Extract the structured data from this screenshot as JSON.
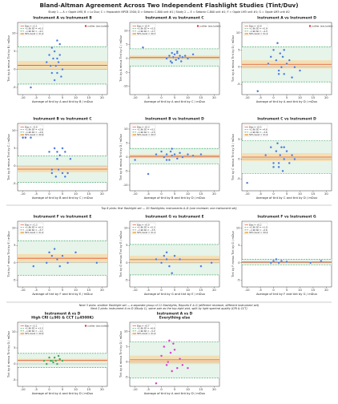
{
  "header": {
    "title": "Bland-Altman Agreement Across Two Independent Flashlight Studies (Tint/Duv)",
    "subtitle": "Study 1 — A = Opple LMS; B = Lx Duv; C = Hopscotch NPCB 1500; D = Sekonic C-800 unit #1  |  Study 2 — E = Sekonic C-800 unit #1; F = Opple LM3 unit #1; G = Opple LM3 unit #2",
    "notes": [
      "Top 6 plots: first flashlight set — 20 flashlights; instruments A–D (one reviewer; one instrument set)",
      "Next 3 plots: another flashlight set — a separate group of 11 flashlights, Reports E & G (different reviewer, different instrument set)",
      "Next 2 plots: instrument A vs D (Study 1), same pair as the top-right plot, split by light spectral quality (CRI & CCT)"
    ]
  },
  "chart_data": [
    {
      "type": "scatter",
      "title": [
        "Instrument A vs Instrument B"
      ],
      "x_label": "Average of tint by A and tint by B / mDuv",
      "y_label": "Tint by A minus Tint by B / mDuv",
      "xlim": [
        -12,
        22
      ],
      "xticks": [
        -10,
        -5,
        0,
        5,
        10,
        15,
        20
      ],
      "ylim": [
        -7,
        13
      ],
      "yticks": [
        -5,
        0,
        5,
        10
      ],
      "color": "#4a78d6",
      "annotation": "outlier (excluded)",
      "bias": {
        "name": "Bias = +1.1",
        "value": 1.1
      },
      "upper": {
        "name": "+1.96 SD = +6.3",
        "value": 6.3
      },
      "lower": {
        "name": "−1.96 SD = −4.1",
        "value": -4.1
      },
      "band": {
        "name": "50% band = ±1.2",
        "halfwidth": 1.2
      },
      "x": [
        -7,
        -1,
        0,
        1,
        1.5,
        2,
        2.5,
        3,
        3,
        3.5,
        4,
        4.5,
        5,
        2,
        0.5,
        1,
        3,
        4
      ],
      "y": [
        -5,
        2,
        4,
        6,
        3,
        5,
        1,
        8,
        -1,
        2,
        4,
        -2,
        0,
        -3,
        1,
        -1,
        3,
        7
      ]
    },
    {
      "type": "scatter",
      "title": [
        "Instrument A vs Instrument C"
      ],
      "x_label": "Average of tint by A and tint by C / mDuv",
      "y_label": "Tint by A minus Tint by C / mDuv",
      "xlim": [
        -12,
        22
      ],
      "xticks": [
        -10,
        -5,
        0,
        5,
        10,
        15,
        20
      ],
      "ylim": [
        -13,
        13
      ],
      "yticks": [
        -10,
        -5,
        0,
        5,
        10
      ],
      "color": "#4a78d6",
      "annotation": "outlier (excluded)",
      "bias": {
        "name": "Bias = +0.4",
        "value": 0.4
      },
      "upper": {
        "name": "+1.96 SD = +3.5",
        "value": 3.5
      },
      "lower": {
        "name": "−1.96 SD = −2.7",
        "value": -2.7
      },
      "band": {
        "name": "50% band = ±0.7",
        "halfwidth": 0.7
      },
      "x": [
        -7,
        2,
        3,
        3.5,
        4,
        4.5,
        5,
        5.5,
        6,
        6.5,
        7,
        7.5,
        8,
        9,
        10,
        12,
        4,
        6
      ],
      "y": [
        4,
        0,
        1,
        -1,
        2,
        0.5,
        1.5,
        -0.5,
        2,
        0,
        1,
        -1,
        0.5,
        1,
        0,
        1.5,
        -1.5,
        2.5
      ]
    },
    {
      "type": "scatter",
      "title": [
        "Instrument A vs Instrument D"
      ],
      "x_label": "Average of tint by A and tint by D / mDuv",
      "y_label": "Tint by A minus Tint by D / mDuv",
      "xlim": [
        -12,
        22
      ],
      "xticks": [
        -10,
        -5,
        0,
        5,
        10,
        15,
        20
      ],
      "ylim": [
        -8,
        13
      ],
      "yticks": [
        -5,
        0,
        5,
        10
      ],
      "color": "#4a78d6",
      "annotation": "outlier (excluded)",
      "bias": {
        "name": "Bias = +0.8",
        "value": 0.8
      },
      "upper": {
        "name": "+1.96 SD = +5.9",
        "value": 5.9
      },
      "lower": {
        "name": "−1.96 SD = −4.3",
        "value": -4.3
      },
      "band": {
        "name": "50% band = ±1.2",
        "halfwidth": 1.2
      },
      "x": [
        -6,
        -2,
        -1,
        0,
        1,
        1.5,
        2,
        2.5,
        3,
        3.5,
        4,
        5,
        6,
        7,
        8,
        10,
        2,
        4
      ],
      "y": [
        -7,
        1,
        3,
        5,
        2,
        7,
        -1,
        4,
        0,
        3,
        -2,
        1,
        2,
        -3,
        0,
        -1,
        -2,
        5
      ]
    },
    {
      "type": "scatter",
      "title": [
        "Instrument B vs Instrument C"
      ],
      "x_label": "Average of tint by B and tint by C / mDuv",
      "y_label": "Tint by B minus Tint by C / mDuv",
      "xlim": [
        -12,
        22
      ],
      "xticks": [
        -10,
        -5,
        0,
        5,
        10,
        15,
        20
      ],
      "ylim": [
        -7,
        12
      ],
      "yticks": [
        -5,
        0,
        5,
        10
      ],
      "color": "#4a78d6",
      "bias": {
        "name": "Bias = −0.9",
        "value": -0.9
      },
      "upper": {
        "name": "+1.96 SD = +2.8",
        "value": 2.8
      },
      "lower": {
        "name": "−1.96 SD = −4.6",
        "value": -4.6
      },
      "band": {
        "name": "50% band = ±0.9",
        "halfwidth": 0.9
      },
      "x": [
        -10,
        -9,
        -7,
        0,
        1,
        2,
        2.5,
        3,
        3.5,
        4,
        5,
        6,
        7,
        8,
        1,
        3,
        5,
        6
      ],
      "y": [
        8,
        8,
        8,
        4,
        -2,
        5,
        -3,
        4,
        -1,
        3,
        -2,
        4,
        -2,
        2,
        -1,
        2,
        5,
        -3
      ]
    },
    {
      "type": "scatter",
      "title": [
        "Instrument B vs Instrument D"
      ],
      "x_label": "Average of tint by B and tint by D / mDuv",
      "y_label": "Tint by B minus Tint by D / mDuv",
      "xlim": [
        -12,
        22
      ],
      "xticks": [
        -10,
        -5,
        0,
        5,
        10,
        15,
        20
      ],
      "ylim": [
        -12,
        12
      ],
      "yticks": [
        -10,
        -5,
        0,
        5,
        10
      ],
      "color": "#4a78d6",
      "bias": {
        "name": "Bias = +0.3",
        "value": 0.3
      },
      "upper": {
        "name": "+1.96 SD = +3.1",
        "value": 3.1
      },
      "lower": {
        "name": "−1.96 SD = −2.5",
        "value": -2.5
      },
      "band": {
        "name": "50% band = ±0.7",
        "halfwidth": 0.7
      },
      "x": [
        -10,
        -5,
        -2,
        0,
        1,
        2,
        3,
        3.5,
        4,
        5,
        6,
        7,
        8,
        10,
        12,
        15,
        4,
        2
      ],
      "y": [
        -1,
        -6,
        1,
        2,
        0,
        1,
        -1,
        2,
        0.5,
        1,
        -0.5,
        1.5,
        0,
        1,
        0.5,
        1,
        3,
        -1
      ]
    },
    {
      "type": "scatter",
      "title": [
        "Instrument C vs Instrument D"
      ],
      "x_label": "Average of tint by C and tint by D / mDuv",
      "y_label": "Tint by C minus Tint by D / mDuv",
      "xlim": [
        -12,
        22
      ],
      "xticks": [
        -10,
        -5,
        0,
        5,
        10,
        15,
        20
      ],
      "ylim": [
        -8,
        9
      ],
      "yticks": [
        -5,
        0,
        5
      ],
      "color": "#4a78d6",
      "bias": {
        "name": "Bias = +0.5",
        "value": 0.5
      },
      "upper": {
        "name": "+1.96 SD = +4.6",
        "value": 4.6
      },
      "lower": {
        "name": "−1.96 SD = −3.6",
        "value": -3.6
      },
      "band": {
        "name": "50% band = ±1.0",
        "halfwidth": 1.0
      },
      "x": [
        -10,
        -3,
        -1,
        0,
        1,
        1.5,
        2,
        2.5,
        3,
        3.5,
        4,
        5,
        6,
        7,
        8,
        2,
        0,
        4
      ],
      "y": [
        -6,
        1,
        3,
        -1,
        2,
        4,
        -2,
        1,
        3,
        -3,
        0,
        2,
        -1,
        1,
        0,
        -1,
        -2,
        3
      ]
    },
    {
      "type": "scatter",
      "title": [
        "Instrument F vs Instrument E"
      ],
      "x_label": "Average of tint by F and tint by E / mDuv",
      "y_label": "Tint by F minus Tint by E / mDuv",
      "xlim": [
        -12,
        22
      ],
      "xticks": [
        -10,
        -5,
        0,
        5,
        10,
        15,
        20
      ],
      "ylim": [
        -7,
        12
      ],
      "yticks": [
        -5,
        0,
        5,
        10
      ],
      "color": "#4a78d6",
      "bias": {
        "name": "Bias = +1.3",
        "value": 1.3
      },
      "upper": {
        "name": "+1.96 SD = +6.3",
        "value": 6.3
      },
      "lower": {
        "name": "−1.96 SD = −3.7",
        "value": -3.7
      },
      "band": {
        "name": "50% band = ±1.2",
        "halfwidth": 1.2
      },
      "x": [
        0,
        1,
        2,
        3,
        5,
        -1,
        4,
        7,
        -6,
        10,
        18
      ],
      "y": [
        3,
        2,
        4,
        1,
        2,
        0,
        -1,
        0,
        -1,
        3,
        0
      ]
    },
    {
      "type": "scatter",
      "title": [
        "Instrument G vs Instrument E"
      ],
      "x_label": "Average of tint by G and tint by E / mDuv",
      "y_label": "Tint by G minus Tint by E / mDuv",
      "xlim": [
        -12,
        22
      ],
      "xticks": [
        -10,
        -5,
        0,
        5,
        10,
        15,
        20
      ],
      "ylim": [
        -7,
        12
      ],
      "yticks": [
        -5,
        0,
        5,
        10
      ],
      "color": "#4a78d6",
      "bias": {
        "name": "Bias = +0.9",
        "value": 0.9
      },
      "upper": {
        "name": "+1.96 SD = +5.3",
        "value": 5.3
      },
      "lower": {
        "name": "−1.96 SD = −3.5",
        "value": -3.5
      },
      "band": {
        "name": "50% band = ±1.1",
        "halfwidth": 1.1
      },
      "x": [
        0,
        1,
        2,
        3,
        5,
        7,
        15,
        4,
        2,
        -2,
        19
      ],
      "y": [
        0,
        2,
        1,
        -1,
        2,
        1,
        -1,
        -3,
        3,
        1,
        0
      ]
    },
    {
      "type": "scatter",
      "title": [
        "Instrument F vs Instrument G"
      ],
      "x_label": "Average of tint by F and tint by G / mDuv",
      "y_label": "Tint by F minus Tint by G / mDuv",
      "xlim": [
        -12,
        22
      ],
      "xticks": [
        -10,
        -5,
        0,
        5,
        10,
        15,
        20
      ],
      "ylim": [
        -7,
        12
      ],
      "yticks": [
        -5,
        0,
        5,
        10
      ],
      "color": "#4a78d6",
      "bias": {
        "name": "Bias = +0.2",
        "value": 0.2
      },
      "upper": {
        "name": "+1.96 SD = +1.0",
        "value": 1.0
      },
      "lower": {
        "name": "−1.96 SD = −0.6",
        "value": -0.6
      },
      "band": {
        "name": "50% band = ±0.2",
        "halfwidth": 0.2
      },
      "x": [
        0,
        1,
        3,
        14,
        18,
        -1,
        2,
        5
      ],
      "y": [
        0.5,
        1,
        0.5,
        0,
        0.5,
        0,
        0,
        0.3
      ]
    },
    {
      "type": "scatter",
      "title": [
        "Instrument A vs D",
        "High CRI (≥90) & CCT (≤4500K)"
      ],
      "x_label": "Average of tint by A and tint by D / mDuv",
      "y_label": "Tint by A minus Tint by D / mDuv",
      "xlim": [
        -12,
        22
      ],
      "xticks": [
        -10,
        -5,
        0,
        5,
        10,
        15,
        20
      ],
      "ylim": [
        -7,
        13
      ],
      "yticks": [
        -5,
        0,
        5,
        10
      ],
      "color": "#3aa655",
      "annotation": "outlier (excluded)",
      "bias": {
        "name": "Bias = +1.1",
        "value": 1.1
      },
      "upper": {
        "name": "+1.96 SD = +3.3",
        "value": 3.3
      },
      "lower": {
        "name": "−1.96 SD = −1.1",
        "value": -1.1
      },
      "band": {
        "name": "50% band = ±0.5",
        "halfwidth": 0.5
      },
      "x": [
        -2,
        -1,
        0,
        1,
        1.5,
        2,
        2.5,
        3,
        4,
        5,
        3.5,
        0.5
      ],
      "y": [
        1,
        0,
        2,
        1,
        0.5,
        2,
        1,
        0,
        1.5,
        1,
        2.5,
        1
      ]
    },
    {
      "type": "scatter",
      "title": [
        "Instrument A vs D",
        "Everything else"
      ],
      "x_label": "Average of tint by A and tint by D / mDuv",
      "y_label": "Tint by A minus Tint by D / mDuv",
      "xlim": [
        -12,
        22
      ],
      "xticks": [
        -10,
        -5,
        0,
        5,
        10,
        15,
        20
      ],
      "ylim": [
        -8,
        13
      ],
      "yticks": [
        -5,
        0,
        5,
        10
      ],
      "color": "#d63ac8",
      "bias": {
        "name": "Bias = +0.7",
        "value": 0.7
      },
      "upper": {
        "name": "+1.96 SD = +6.6",
        "value": 6.6
      },
      "lower": {
        "name": "−1.96 SD = −5.2",
        "value": -5.2
      },
      "band": {
        "name": "50% band = ±1.4",
        "halfwidth": 1.4
      },
      "x": [
        -2,
        0,
        1,
        2,
        3,
        3.5,
        4,
        5,
        6,
        7,
        8,
        10,
        2.5,
        4.5
      ],
      "y": [
        -7,
        2,
        5,
        -1,
        7,
        3,
        -3,
        4,
        -2,
        1,
        -1,
        -2,
        0,
        6
      ]
    }
  ]
}
